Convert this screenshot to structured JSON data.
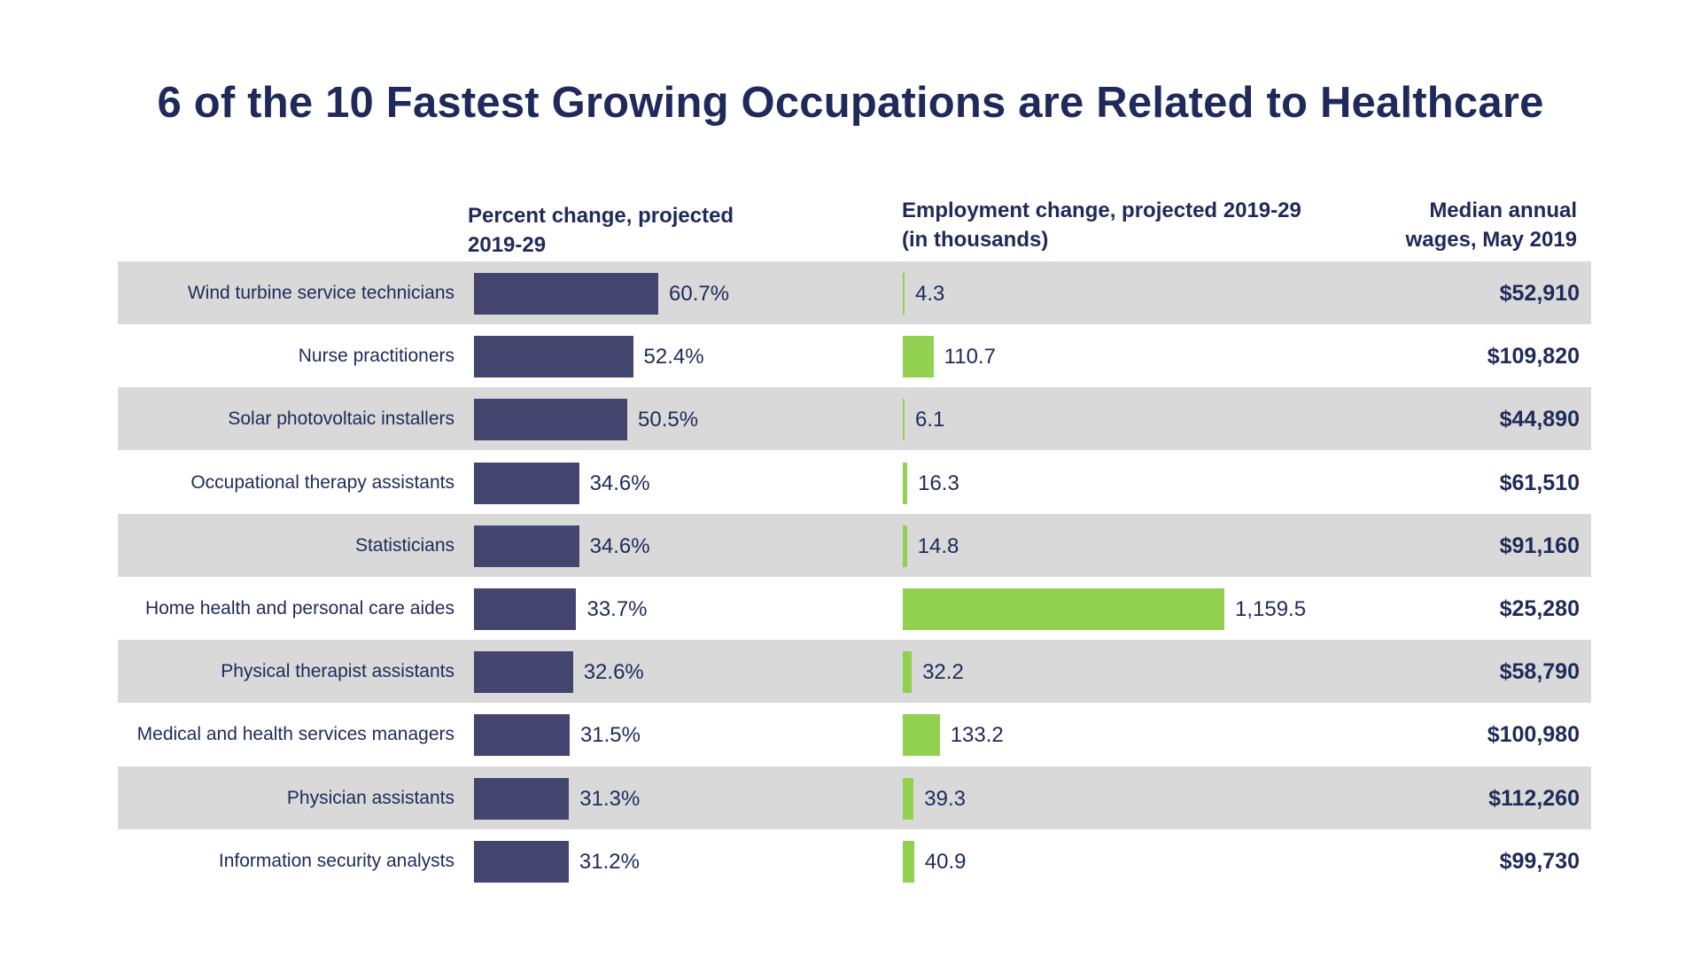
{
  "title": "6 of the 10 Fastest Growing Occupations are Related to Healthcare",
  "columns": {
    "percent_change": [
      "Percent change, projected",
      "2019-29"
    ],
    "employment_change": [
      "Employment change, projected 2019-29",
      "(in thousands)"
    ],
    "median_wages": [
      "Median annual",
      "wages, May 2019"
    ]
  },
  "colors": {
    "percent_bar": "#44456e",
    "employment_bar": "#92d050",
    "row_shade": "#d9d9d9",
    "text": "#1f2a5a"
  },
  "chart_data": {
    "type": "bar",
    "title": "6 of the 10 Fastest Growing Occupations are Related to Healthcare",
    "categories": [
      "Wind turbine service technicians",
      "Nurse practitioners",
      "Solar photovoltaic installers",
      "Occupational therapy assistants",
      "Statisticians",
      "Home health and personal care aides",
      "Physical therapist assistants",
      "Medical and health services managers",
      "Physician assistants",
      "Information security analysts"
    ],
    "series": [
      {
        "name": "Percent change, projected 2019-29",
        "values": [
          60.7,
          52.4,
          50.5,
          34.6,
          34.6,
          33.7,
          32.6,
          31.5,
          31.3,
          31.2
        ],
        "labels": [
          "60.7%",
          "52.4%",
          "50.5%",
          "34.6%",
          "34.6%",
          "33.7%",
          "32.6%",
          "31.5%",
          "31.3%",
          "31.2%"
        ]
      },
      {
        "name": "Employment change, projected 2019-29 (in thousands)",
        "values": [
          4.3,
          110.7,
          6.1,
          16.3,
          14.8,
          1159.5,
          32.2,
          133.2,
          39.3,
          40.9
        ],
        "labels": [
          "4.3",
          "110.7",
          "6.1",
          "16.3",
          "14.8",
          "1,159.5",
          "32.2",
          "133.2",
          "39.3",
          "40.9"
        ]
      }
    ],
    "median_wages": [
      "$52,910",
      "$109,820",
      "$44,890",
      "$61,510",
      "$91,160",
      "$25,280",
      "$58,790",
      "$100,980",
      "$112,260",
      "$99,730"
    ],
    "grid": false,
    "legend": "none"
  }
}
